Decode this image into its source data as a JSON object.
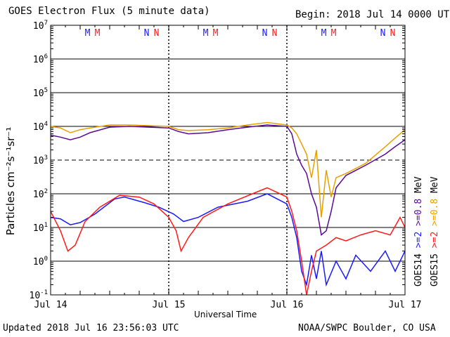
{
  "header": {
    "title": "GOES Electron Flux (5 minute data)",
    "begin": "Begin: 2018 Jul 14 0000 UTC"
  },
  "footer": {
    "updated": "Updated 2018 Jul 16 23:56:03 UTC",
    "credit": "NOAA/SWPC Boulder, CO USA"
  },
  "colors": {
    "goes14_ge0p8": "#5a0a96",
    "goes15_ge0p8": "#e8a000",
    "goes14_ge2": "#1a1aff",
    "goes15_ge2": "#ff1a1a"
  },
  "chart_data": {
    "type": "line",
    "title": "GOES Electron Flux (5 minute data)",
    "xlabel": "Universal Time",
    "ylabel": "Particles cm⁻²s⁻¹sr⁻¹",
    "yscale": "log",
    "ylim": [
      0.1,
      10000000
    ],
    "xlim": [
      "2018-07-14 00:00",
      "2018-07-17 00:00"
    ],
    "x_tick_labels": [
      "Jul 14",
      "Jul 15",
      "Jul 16",
      "Jul 17"
    ],
    "y_ticks": [
      {
        "base": "10",
        "exp": "7"
      },
      {
        "base": "10",
        "exp": "6"
      },
      {
        "base": "10",
        "exp": "5"
      },
      {
        "base": "10",
        "exp": "4"
      },
      {
        "base": "10",
        "exp": "3"
      },
      {
        "base": "10",
        "exp": "2"
      },
      {
        "base": "10",
        "exp": "1"
      },
      {
        "base": "10",
        "exp": "0"
      },
      {
        "base": "10",
        "exp": "-1"
      }
    ],
    "dashed_threshold": 1000,
    "grid": true,
    "markers": [
      {
        "text": "M",
        "color": "#1a1aff",
        "x": "2018-07-14 07:30"
      },
      {
        "text": "M",
        "color": "#ff1a1a",
        "x": "2018-07-14 09:30"
      },
      {
        "text": "N",
        "color": "#1a1aff",
        "x": "2018-07-14 19:30"
      },
      {
        "text": "N",
        "color": "#ff1a1a",
        "x": "2018-07-14 21:30"
      },
      {
        "text": "M",
        "color": "#1a1aff",
        "x": "2018-07-15 07:30"
      },
      {
        "text": "M",
        "color": "#ff1a1a",
        "x": "2018-07-15 09:30"
      },
      {
        "text": "N",
        "color": "#1a1aff",
        "x": "2018-07-15 19:30"
      },
      {
        "text": "N",
        "color": "#ff1a1a",
        "x": "2018-07-15 21:30"
      },
      {
        "text": "M",
        "color": "#1a1aff",
        "x": "2018-07-16 07:30"
      },
      {
        "text": "M",
        "color": "#ff1a1a",
        "x": "2018-07-16 09:30"
      },
      {
        "text": "N",
        "color": "#1a1aff",
        "x": "2018-07-16 19:30"
      },
      {
        "text": "N",
        "color": "#ff1a1a",
        "x": "2018-07-16 21:30"
      }
    ],
    "legend": {
      "placement": "right",
      "sat_labels": [
        "GOES14",
        "GOES15"
      ],
      "energy_labels": [
        ">=2",
        ">=2",
        ">=0.8",
        ">=0.8"
      ],
      "unit": "MeV"
    },
    "series": [
      {
        "name": "GOES14 >=0.8 MeV",
        "color": "#5a0a96",
        "points": [
          [
            "2018-07-14 00:00",
            5500
          ],
          [
            "2018-07-14 02:00",
            4800
          ],
          [
            "2018-07-14 04:00",
            4000
          ],
          [
            "2018-07-14 06:00",
            4800
          ],
          [
            "2018-07-14 08:00",
            6500
          ],
          [
            "2018-07-14 12:00",
            9500
          ],
          [
            "2018-07-14 16:00",
            10000
          ],
          [
            "2018-07-14 20:00",
            9500
          ],
          [
            "2018-07-15 00:00",
            9000
          ],
          [
            "2018-07-15 02:00",
            7000
          ],
          [
            "2018-07-15 04:00",
            6000
          ],
          [
            "2018-07-15 08:00",
            6500
          ],
          [
            "2018-07-15 12:00",
            8000
          ],
          [
            "2018-07-15 16:00",
            9500
          ],
          [
            "2018-07-15 20:00",
            11000
          ],
          [
            "2018-07-16 00:00",
            10000
          ],
          [
            "2018-07-16 01:00",
            6000
          ],
          [
            "2018-07-16 02:00",
            1500
          ],
          [
            "2018-07-16 03:00",
            700
          ],
          [
            "2018-07-16 04:00",
            400
          ],
          [
            "2018-07-16 05:00",
            100
          ],
          [
            "2018-07-16 06:00",
            40
          ],
          [
            "2018-07-16 07:00",
            6
          ],
          [
            "2018-07-16 08:00",
            8
          ],
          [
            "2018-07-16 09:00",
            30
          ],
          [
            "2018-07-16 10:00",
            150
          ],
          [
            "2018-07-16 12:00",
            350
          ],
          [
            "2018-07-16 16:00",
            700
          ],
          [
            "2018-07-16 20:00",
            1500
          ],
          [
            "2018-07-16 22:00",
            2500
          ],
          [
            "2018-07-17 00:00",
            4000
          ]
        ]
      },
      {
        "name": "GOES15 >=0.8 MeV",
        "color": "#e8a000",
        "points": [
          [
            "2018-07-14 00:00",
            10000
          ],
          [
            "2018-07-14 02:00",
            9000
          ],
          [
            "2018-07-14 04:00",
            6500
          ],
          [
            "2018-07-14 06:00",
            8000
          ],
          [
            "2018-07-14 08:00",
            9000
          ],
          [
            "2018-07-14 12:00",
            11000
          ],
          [
            "2018-07-14 16:00",
            11000
          ],
          [
            "2018-07-14 20:00",
            10500
          ],
          [
            "2018-07-15 00:00",
            10000
          ],
          [
            "2018-07-15 02:00",
            8000
          ],
          [
            "2018-07-15 04:00",
            7500
          ],
          [
            "2018-07-15 08:00",
            8000
          ],
          [
            "2018-07-15 12:00",
            9000
          ],
          [
            "2018-07-15 16:00",
            11000
          ],
          [
            "2018-07-15 20:00",
            13000
          ],
          [
            "2018-07-16 00:00",
            11000
          ],
          [
            "2018-07-16 01:00",
            9000
          ],
          [
            "2018-07-16 02:00",
            6000
          ],
          [
            "2018-07-16 03:00",
            3000
          ],
          [
            "2018-07-16 04:00",
            1500
          ],
          [
            "2018-07-16 05:00",
            300
          ],
          [
            "2018-07-16 06:00",
            2000
          ],
          [
            "2018-07-16 07:00",
            20
          ],
          [
            "2018-07-16 08:00",
            500
          ],
          [
            "2018-07-16 09:00",
            80
          ],
          [
            "2018-07-16 10:00",
            300
          ],
          [
            "2018-07-16 12:00",
            400
          ],
          [
            "2018-07-16 16:00",
            800
          ],
          [
            "2018-07-16 20:00",
            2500
          ],
          [
            "2018-07-16 22:00",
            4500
          ],
          [
            "2018-07-17 00:00",
            8000
          ]
        ]
      },
      {
        "name": "GOES14 >=2 MeV",
        "color": "#1a1aff",
        "points": [
          [
            "2018-07-14 00:00",
            20
          ],
          [
            "2018-07-14 02:00",
            18
          ],
          [
            "2018-07-14 04:00",
            12
          ],
          [
            "2018-07-14 06:00",
            14
          ],
          [
            "2018-07-14 09:00",
            25
          ],
          [
            "2018-07-14 13:00",
            70
          ],
          [
            "2018-07-14 15:00",
            80
          ],
          [
            "2018-07-14 19:00",
            55
          ],
          [
            "2018-07-14 22:00",
            40
          ],
          [
            "2018-07-15 01:00",
            25
          ],
          [
            "2018-07-15 03:00",
            15
          ],
          [
            "2018-07-15 06:00",
            20
          ],
          [
            "2018-07-15 10:00",
            40
          ],
          [
            "2018-07-15 16:00",
            60
          ],
          [
            "2018-07-15 20:00",
            100
          ],
          [
            "2018-07-16 00:00",
            50
          ],
          [
            "2018-07-16 01:00",
            20
          ],
          [
            "2018-07-16 02:00",
            5
          ],
          [
            "2018-07-16 03:00",
            0.5
          ],
          [
            "2018-07-16 04:00",
            0.2
          ],
          [
            "2018-07-16 05:00",
            1.5
          ],
          [
            "2018-07-16 06:00",
            0.3
          ],
          [
            "2018-07-16 07:00",
            2
          ],
          [
            "2018-07-16 08:00",
            0.2
          ],
          [
            "2018-07-16 10:00",
            1
          ],
          [
            "2018-07-16 12:00",
            0.3
          ],
          [
            "2018-07-16 14:00",
            1.5
          ],
          [
            "2018-07-16 17:00",
            0.5
          ],
          [
            "2018-07-16 20:00",
            2
          ],
          [
            "2018-07-16 22:00",
            0.5
          ],
          [
            "2018-07-17 00:00",
            2
          ]
        ]
      },
      {
        "name": "GOES15 >=2 MeV",
        "color": "#ff1a1a",
        "points": [
          [
            "2018-07-14 00:00",
            30
          ],
          [
            "2018-07-14 02:00",
            8
          ],
          [
            "2018-07-14 03:30",
            2
          ],
          [
            "2018-07-14 05:00",
            3
          ],
          [
            "2018-07-14 07:00",
            15
          ],
          [
            "2018-07-14 10:00",
            40
          ],
          [
            "2018-07-14 14:00",
            90
          ],
          [
            "2018-07-14 18:00",
            80
          ],
          [
            "2018-07-14 21:00",
            50
          ],
          [
            "2018-07-15 00:00",
            20
          ],
          [
            "2018-07-15 01:30",
            8
          ],
          [
            "2018-07-15 02:30",
            2
          ],
          [
            "2018-07-15 04:00",
            5
          ],
          [
            "2018-07-15 07:00",
            20
          ],
          [
            "2018-07-15 12:00",
            50
          ],
          [
            "2018-07-15 17:00",
            100
          ],
          [
            "2018-07-15 20:00",
            150
          ],
          [
            "2018-07-16 00:00",
            80
          ],
          [
            "2018-07-16 01:00",
            30
          ],
          [
            "2018-07-16 02:00",
            8
          ],
          [
            "2018-07-16 03:00",
            1
          ],
          [
            "2018-07-16 04:00",
            0.1
          ],
          [
            "2018-07-16 05:00",
            0.5
          ],
          [
            "2018-07-16 06:00",
            2
          ],
          [
            "2018-07-16 08:00",
            3
          ],
          [
            "2018-07-16 10:00",
            5
          ],
          [
            "2018-07-16 12:00",
            4
          ],
          [
            "2018-07-16 15:00",
            6
          ],
          [
            "2018-07-16 18:00",
            8
          ],
          [
            "2018-07-16 21:00",
            6
          ],
          [
            "2018-07-16 23:00",
            20
          ],
          [
            "2018-07-17 00:00",
            10
          ]
        ]
      }
    ]
  }
}
